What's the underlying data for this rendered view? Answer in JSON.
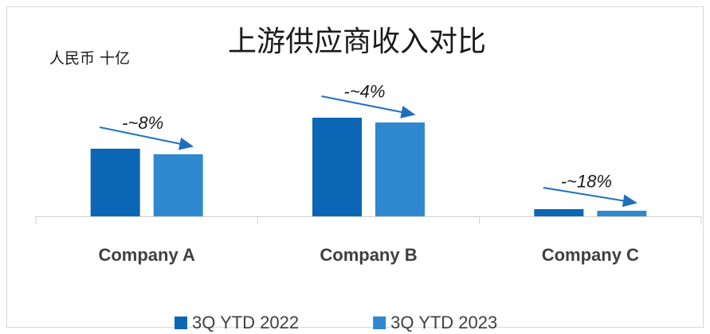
{
  "chart_data": {
    "type": "bar",
    "title": "上游供应商收入对比",
    "unit_label": "人民币 十亿",
    "categories": [
      "Company A",
      "Company B",
      "Company C"
    ],
    "series": [
      {
        "name": "3Q YTD 2022",
        "color": "#0b67b5",
        "values": [
          8.5,
          12.4,
          0.9
        ]
      },
      {
        "name": "3Q YTD 2023",
        "color": "#2f88cf",
        "values": [
          7.8,
          11.8,
          0.7
        ]
      }
    ],
    "annotations": [
      "-~8%",
      "-~4%",
      "-~18%"
    ],
    "legend": "bottom"
  }
}
